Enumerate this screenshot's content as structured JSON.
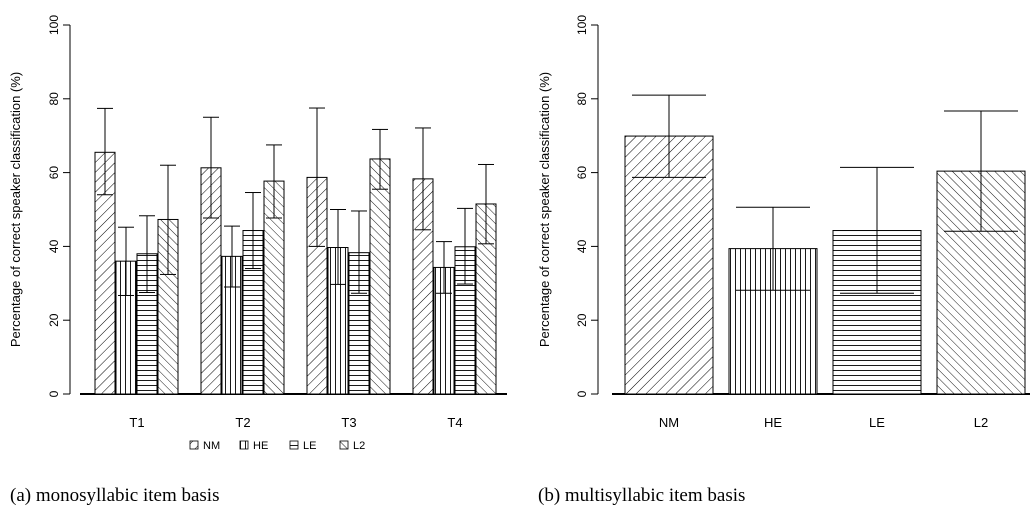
{
  "chart_data": [
    {
      "type": "bar",
      "ylabel": "Percentage of correct speaker classification (%)",
      "ylim": [
        0,
        100
      ],
      "yticks": [
        0,
        20,
        40,
        60,
        80,
        100
      ],
      "categories": [
        "T1",
        "T2",
        "T3",
        "T4"
      ],
      "series": [
        {
          "name": "NM",
          "values": [
            65.5,
            61.3,
            58.7,
            58.3
          ],
          "err_low": [
            54.0,
            47.7,
            40.0,
            44.5
          ],
          "err_high": [
            77.4,
            75.0,
            77.5,
            72.1
          ]
        },
        {
          "name": "HE",
          "values": [
            36.0,
            37.3,
            39.7,
            34.3
          ],
          "err_low": [
            26.7,
            29.0,
            29.7,
            27.3
          ],
          "err_high": [
            45.2,
            45.5,
            50.0,
            41.3
          ]
        },
        {
          "name": "LE",
          "values": [
            38.0,
            44.3,
            38.3,
            39.9
          ],
          "err_low": [
            27.5,
            34.0,
            27.3,
            29.8
          ],
          "err_high": [
            48.3,
            54.6,
            49.6,
            50.3
          ]
        },
        {
          "name": "L2",
          "values": [
            47.3,
            57.7,
            63.7,
            51.5
          ],
          "err_low": [
            32.4,
            47.7,
            55.5,
            40.7
          ],
          "err_high": [
            62.0,
            67.5,
            71.7,
            62.2
          ]
        }
      ],
      "legend": {
        "placement": "bottom",
        "entries": [
          "NM",
          "HE",
          "LE",
          "L2"
        ]
      },
      "caption": "(a) monosyllabic item basis"
    },
    {
      "type": "bar",
      "ylabel": "Percentage of correct speaker classification (%)",
      "ylim": [
        0,
        100
      ],
      "yticks": [
        0,
        20,
        40,
        60,
        80,
        100
      ],
      "categories": [
        "NM",
        "HE",
        "LE",
        "L2"
      ],
      "values": [
        69.9,
        39.4,
        44.3,
        60.4
      ],
      "err_low": [
        58.7,
        28.1,
        27.3,
        44.1
      ],
      "err_high": [
        81.0,
        50.6,
        61.4,
        76.7
      ],
      "caption": "(b) multisyllabic item basis"
    }
  ]
}
